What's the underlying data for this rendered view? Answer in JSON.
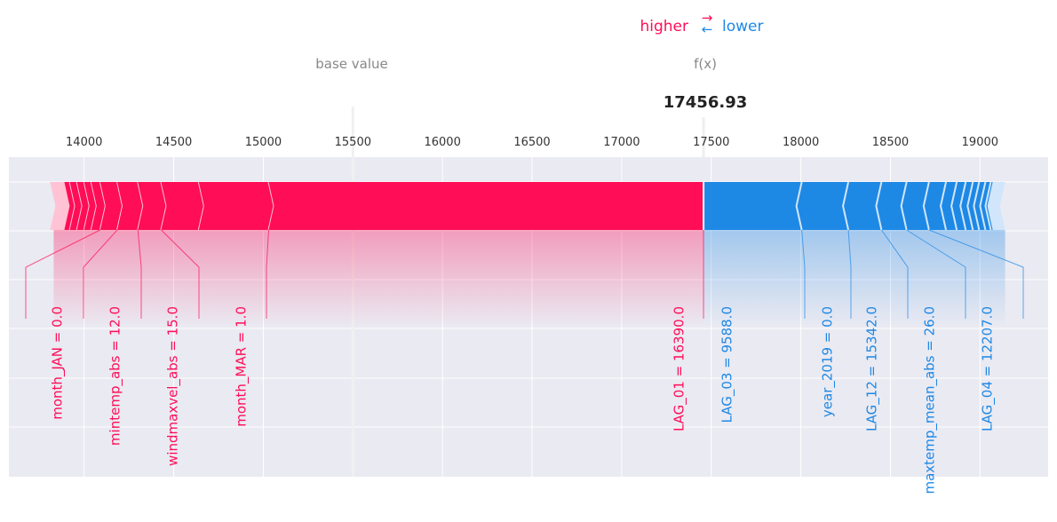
{
  "legend": {
    "higher_label": "higher",
    "lower_label": "lower",
    "arrow_right": "→",
    "arrow_left": "←"
  },
  "base_value_label": "base value",
  "fx_label": "f(x)",
  "fx_value": "17456.93",
  "colors": {
    "positive": "#ff0d57",
    "negative": "#1e88e5",
    "positive_light": "#ffc3d5",
    "negative_light": "#d1e6fa",
    "axes_bg": "#eaeaf2",
    "base_line": "#f0f0f0"
  },
  "chart_data": {
    "type": "force",
    "base_value": 15500,
    "output_value": 17456.93,
    "xlim": [
      13580,
      19380
    ],
    "x_ticks": [
      14000,
      14500,
      15000,
      15500,
      16000,
      16500,
      17000,
      17500,
      18000,
      18500,
      19000
    ],
    "x_tick_labels": [
      "14000",
      "14500",
      "15000",
      "15500",
      "16000",
      "16500",
      "17000",
      "17500",
      "18000",
      "18500",
      "19000"
    ],
    "grid": true,
    "positive_boundaries": [
      13830,
      13880,
      13920,
      13960,
      14000,
      14040,
      14090,
      14185,
      14300,
      14430,
      14640,
      15030,
      17456.93
    ],
    "negative_boundaries": [
      17456.93,
      18005,
      18265,
      18450,
      18590,
      18715,
      18810,
      18870,
      18920,
      18960,
      18995,
      19030,
      19060,
      19095,
      19140
    ],
    "labeled_features": [
      {
        "label": "month_JAN = 0.0",
        "sign": "positive",
        "low": 14090,
        "high": 14185
      },
      {
        "label": "mintemp_abs = 12.0",
        "sign": "positive",
        "low": 14185,
        "high": 14300
      },
      {
        "label": "windmaxvel_abs = 15.0",
        "sign": "positive",
        "low": 14300,
        "high": 14430
      },
      {
        "label": "month_MAR = 1.0",
        "sign": "positive",
        "low": 14430,
        "high": 14640
      },
      {
        "label": "LAG_01 = 16390.0",
        "sign": "positive",
        "low": 15030,
        "high": 17456.93
      },
      {
        "label": "LAG_03 = 9588.0",
        "sign": "negative",
        "low": 17456.93,
        "high": 18005
      },
      {
        "label": "year_2019 = 0.0",
        "sign": "negative",
        "low": 18005,
        "high": 18265
      },
      {
        "label": "LAG_12 = 15342.0",
        "sign": "negative",
        "low": 18265,
        "high": 18450
      },
      {
        "label": "maxtemp_mean_abs = 26.0",
        "sign": "negative",
        "low": 18450,
        "high": 18590
      },
      {
        "label": "LAG_04 = 12207.0",
        "sign": "negative",
        "low": 18590,
        "high": 18715
      }
    ]
  }
}
